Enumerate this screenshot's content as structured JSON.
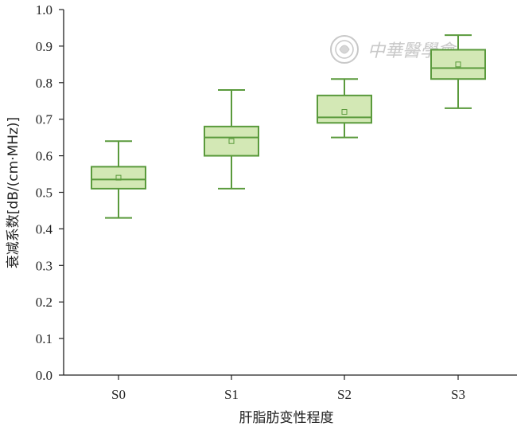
{
  "chart_data": {
    "type": "box",
    "xlabel": "肝脂肪变性程度",
    "ylabel": "衰减系数[dB/(cm·MHz)]",
    "ylim": [
      0.0,
      1.0
    ],
    "yticks": [
      "0.0",
      "0.1",
      "0.2",
      "0.3",
      "0.4",
      "0.5",
      "0.6",
      "0.7",
      "0.8",
      "0.9",
      "1.0"
    ],
    "categories": [
      "S0",
      "S1",
      "S2",
      "S3"
    ],
    "boxes": [
      {
        "category": "S0",
        "min": 0.43,
        "q1": 0.51,
        "median": 0.535,
        "q3": 0.57,
        "max": 0.64,
        "mean": 0.54
      },
      {
        "category": "S1",
        "min": 0.51,
        "q1": 0.6,
        "median": 0.65,
        "q3": 0.68,
        "max": 0.78,
        "mean": 0.64
      },
      {
        "category": "S2",
        "min": 0.65,
        "q1": 0.69,
        "median": 0.705,
        "q3": 0.765,
        "max": 0.81,
        "mean": 0.72
      },
      {
        "category": "S3",
        "min": 0.73,
        "q1": 0.81,
        "median": 0.84,
        "q3": 0.89,
        "max": 0.93,
        "mean": 0.85
      }
    ],
    "colors": {
      "box_fill": "#d3e8b5",
      "box_stroke": "#5a9a3c",
      "axis": "#222222",
      "watermark": "#c8c8c8"
    },
    "grid": false,
    "legend": "none"
  },
  "watermark": {
    "text": "中華醫學會",
    "icon": "society-seal-icon"
  }
}
